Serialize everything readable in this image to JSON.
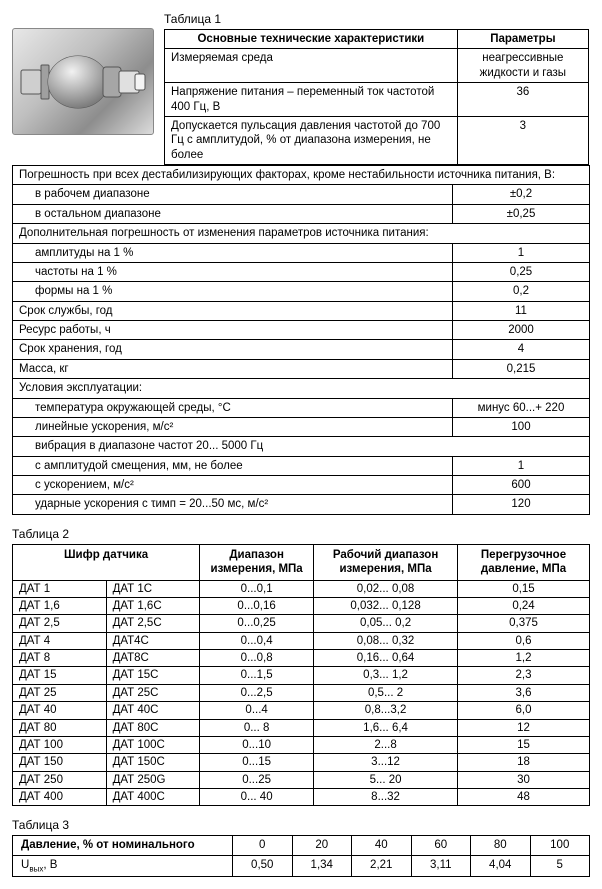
{
  "table1": {
    "title": "Таблица 1",
    "header": {
      "col1": "Основные технические характеристики",
      "col2": "Параметры"
    },
    "narrow_rows": [
      {
        "label": "Измеряемая среда",
        "value": "неагрессивные жидкости и газы"
      },
      {
        "label": "Напряжение питания – переменный ток частотой 400 Гц, В",
        "value": "36"
      },
      {
        "label": "Допускается пульсация давления частотой до 700 Гц с амплитудой, % от диапазона измерения, не более",
        "value": "3"
      }
    ],
    "wide_rows": [
      {
        "type": "span",
        "label": "Погрешность при всех дестабилизирующих факторах, кроме нестабильности источника питания, В:"
      },
      {
        "type": "indent",
        "label": "в рабочем диапазоне",
        "value": "±0,2"
      },
      {
        "type": "indent",
        "label": "в остальном диапазоне",
        "value": "±0,25"
      },
      {
        "type": "span",
        "label": "Дополнительная погрешность от изменения параметров источника питания:"
      },
      {
        "type": "indent",
        "label": "амплитуды на 1 %",
        "value": "1"
      },
      {
        "type": "indent",
        "label": "частоты на 1 %",
        "value": "0,25"
      },
      {
        "type": "indent",
        "label": "формы на 1 %",
        "value": "0,2"
      },
      {
        "type": "row",
        "label": "Срок службы, год",
        "value": "11"
      },
      {
        "type": "row",
        "label": "Ресурс работы, ч",
        "value": "2000"
      },
      {
        "type": "row",
        "label": "Срок хранения, год",
        "value": "4"
      },
      {
        "type": "row",
        "label": "Масса, кг",
        "value": "0,215"
      },
      {
        "type": "span",
        "label": "Условия эксплуатации:"
      },
      {
        "type": "indent",
        "label": "температура окружающей среды, °C",
        "value": "минус 60...+ 220"
      },
      {
        "type": "indent",
        "label": "линейные ускорения, м/с²",
        "value": "100"
      },
      {
        "type": "indent_span",
        "label": "вибрация в диапазоне частот 20... 5000 Гц"
      },
      {
        "type": "indent",
        "label": "с амплитудой смещения, мм, не более",
        "value": "1"
      },
      {
        "type": "indent",
        "label": "с ускорением, м/с²",
        "value": "600"
      },
      {
        "type": "indent",
        "label": "ударные ускорения с τимп = 20...50 мс, м/с²",
        "value": "120"
      }
    ]
  },
  "table2": {
    "title": "Таблица 2",
    "header": {
      "col12": "Шифр датчика",
      "col3": "Диапазон измерения, МПа",
      "col4": "Рабочий диапазон измерения, МПа",
      "col5": "Перегрузочное давление, МПа"
    },
    "rows": [
      {
        "c1": "ДАТ 1",
        "c2": "ДАТ 1С",
        "c3": "0...0,1",
        "c4": "0,02... 0,08",
        "c5": "0,15"
      },
      {
        "c1": "ДАТ 1,6",
        "c2": "ДАТ 1,6С",
        "c3": "0...0,16",
        "c4": "0,032... 0,128",
        "c5": "0,24"
      },
      {
        "c1": "ДАТ 2,5",
        "c2": "ДАТ 2,5С",
        "c3": "0...0,25",
        "c4": "0,05... 0,2",
        "c5": "0,375"
      },
      {
        "c1": "ДАТ 4",
        "c2": "ДАТ4С",
        "c3": "0...0,4",
        "c4": "0,08... 0,32",
        "c5": "0,6"
      },
      {
        "c1": "ДАТ 8",
        "c2": "ДАТ8С",
        "c3": "0...0,8",
        "c4": "0,16... 0,64",
        "c5": "1,2"
      },
      {
        "c1": "ДАТ 15",
        "c2": "ДАТ 15С",
        "c3": "0...1,5",
        "c4": "0,3... 1,2",
        "c5": "2,3"
      },
      {
        "c1": "ДАТ 25",
        "c2": "ДАТ 25С",
        "c3": "0...2,5",
        "c4": "0,5... 2",
        "c5": "3,6"
      },
      {
        "c1": "ДАТ 40",
        "c2": "ДАТ 40С",
        "c3": "0...4",
        "c4": "0,8...3,2",
        "c5": "6,0"
      },
      {
        "c1": "ДАТ 80",
        "c2": "ДАТ 80С",
        "c3": "0... 8",
        "c4": "1,6... 6,4",
        "c5": "12"
      },
      {
        "c1": "ДАТ 100",
        "c2": "ДАТ 100С",
        "c3": "0...10",
        "c4": "2...8",
        "c5": "15"
      },
      {
        "c1": "ДАТ 150",
        "c2": "ДАТ 150С",
        "c3": "0...15",
        "c4": "3...12",
        "c5": "18"
      },
      {
        "c1": "ДАТ 250",
        "c2": "ДАТ 250G",
        "c3": "0...25",
        "c4": "5... 20",
        "c5": "30"
      },
      {
        "c1": "ДАТ 400",
        "c2": "ДАТ 400С",
        "c3": "0... 40",
        "c4": "8...32",
        "c5": "48"
      }
    ]
  },
  "table3": {
    "title": "Таблица 3",
    "row1_label": "Давление, % от номинального",
    "row2_label": "Uвых, В",
    "cols": [
      "0",
      "20",
      "40",
      "60",
      "80",
      "100"
    ],
    "vals": [
      "0,50",
      "1,34",
      "2,21",
      "3,11",
      "4,04",
      "5"
    ]
  }
}
